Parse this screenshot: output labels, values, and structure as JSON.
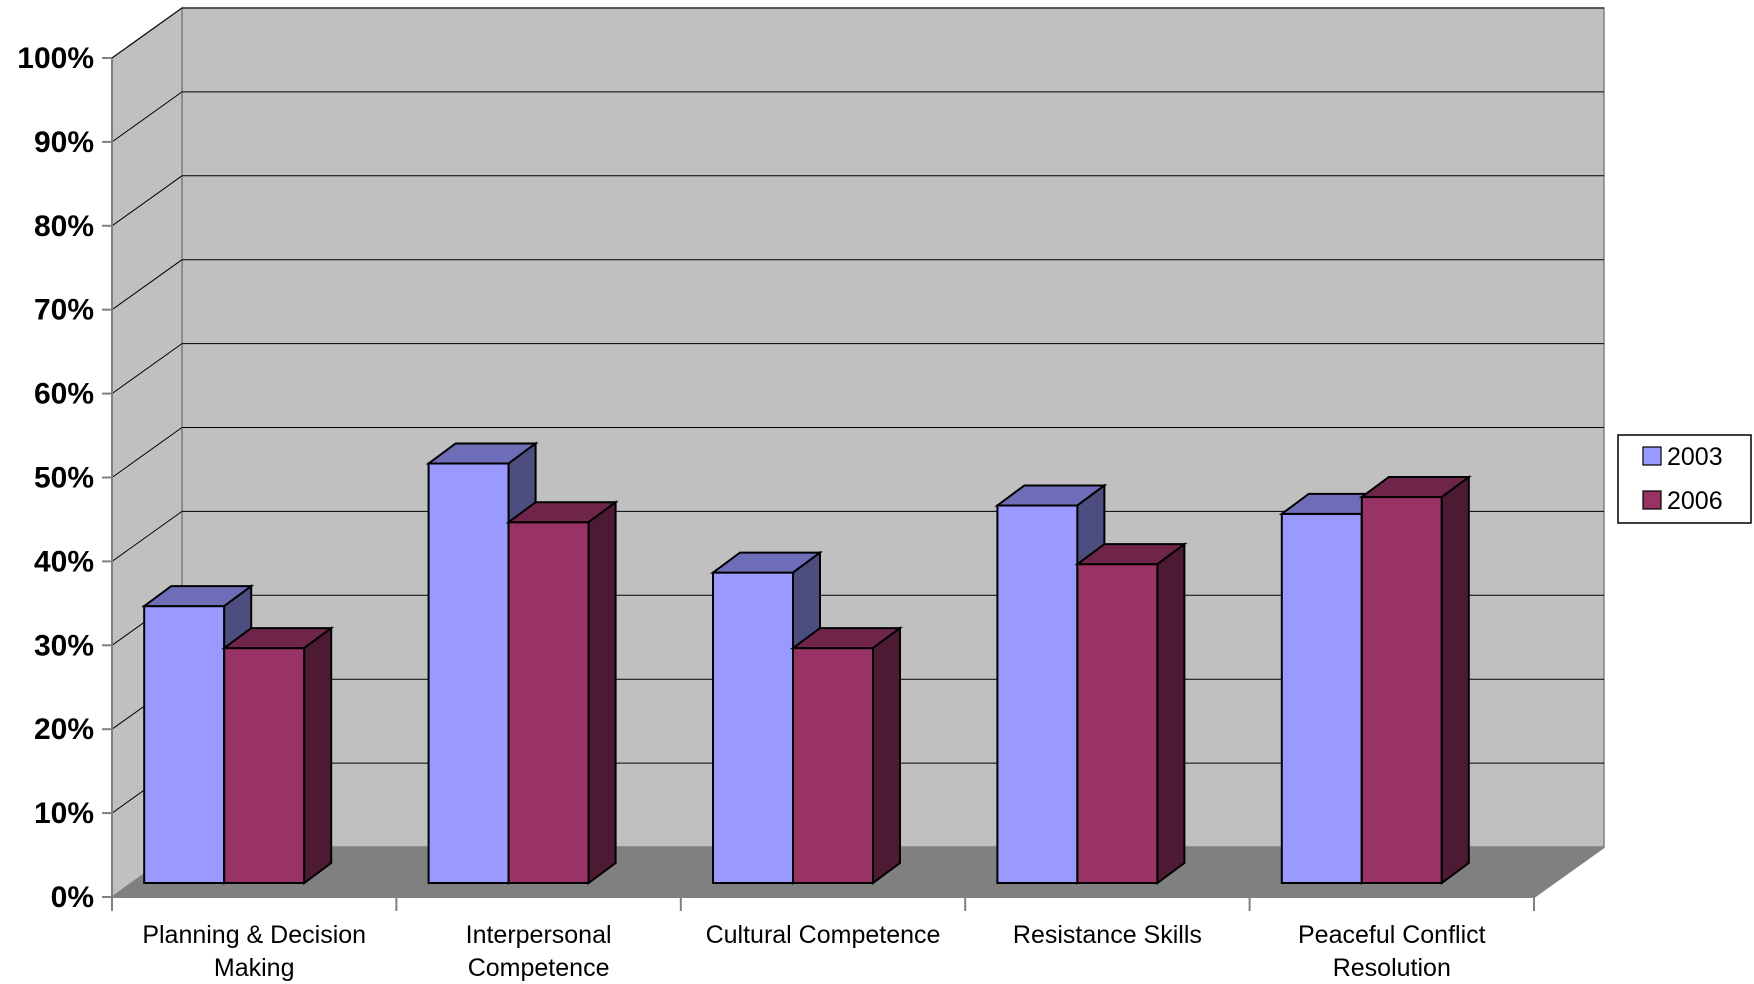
{
  "chart_data": {
    "type": "bar",
    "categories": [
      [
        "Planning & Decision",
        "Making"
      ],
      [
        "Interpersonal",
        "Competence"
      ],
      [
        "Cultural Competence"
      ],
      [
        "Resistance Skills"
      ],
      [
        "Peaceful Conflict",
        "Resolution"
      ]
    ],
    "series": [
      {
        "name": "2003",
        "values": [
          33,
          50,
          37,
          45,
          44
        ],
        "color": "#9999ff"
      },
      {
        "name": "2006",
        "values": [
          28,
          43,
          28,
          38,
          46
        ],
        "color": "#993366"
      }
    ],
    "y_tick_labels": [
      "0%",
      "10%",
      "20%",
      "30%",
      "40%",
      "50%",
      "60%",
      "70%",
      "80%",
      "90%",
      "100%"
    ],
    "ylim": [
      0,
      100
    ],
    "grid": true,
    "legend_position": "right",
    "style": "3d-clustered-column",
    "colors": {
      "wall": "#c0c0c0",
      "floor": "#808080",
      "side_wall": "#c0c0c0"
    }
  }
}
